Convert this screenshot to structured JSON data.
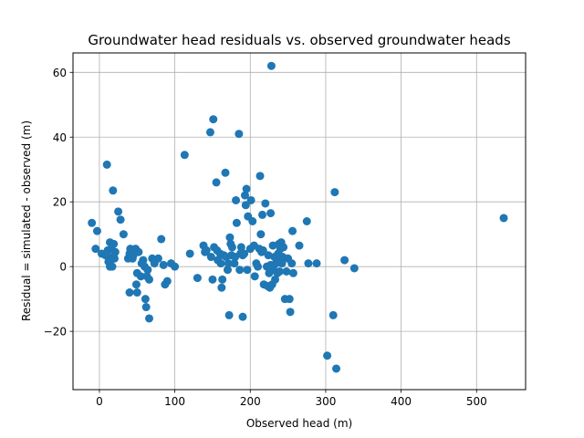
{
  "chart_data": {
    "type": "scatter",
    "title": "Groundwater head residuals vs. observed groundwater heads",
    "xlabel": "Observed head (m)",
    "ylabel": "Residual = simulated - observed (m)",
    "xlim": [
      -35,
      565
    ],
    "ylim": [
      -38,
      66
    ],
    "xticks": [
      0,
      100,
      200,
      300,
      400,
      500
    ],
    "yticks": [
      -20,
      0,
      20,
      40,
      60
    ],
    "grid": true,
    "colors": {
      "marker": "#1f77b4",
      "grid": "#b0b0b0",
      "axes": "#000000"
    },
    "series": [
      {
        "points": [
          [
            -10,
            13.5
          ],
          [
            -5,
            5.5
          ],
          [
            -3,
            11
          ],
          [
            3,
            4
          ],
          [
            8,
            3.5
          ],
          [
            10,
            31.5
          ],
          [
            11,
            5
          ],
          [
            12,
            1.5
          ],
          [
            13,
            3
          ],
          [
            14,
            0
          ],
          [
            14,
            7.5
          ],
          [
            15,
            2
          ],
          [
            16,
            5.5
          ],
          [
            17,
            0
          ],
          [
            18,
            23.5
          ],
          [
            19,
            7
          ],
          [
            20,
            2.5
          ],
          [
            21,
            4.5
          ],
          [
            25,
            17
          ],
          [
            28,
            14.5
          ],
          [
            32,
            10
          ],
          [
            38,
            2.5
          ],
          [
            40,
            4
          ],
          [
            40,
            -8
          ],
          [
            41,
            5.5
          ],
          [
            42,
            3
          ],
          [
            44,
            2.5
          ],
          [
            45,
            3.5
          ],
          [
            48,
            5.5
          ],
          [
            49,
            -5.5
          ],
          [
            50,
            -8
          ],
          [
            50,
            -2
          ],
          [
            52,
            4.5
          ],
          [
            55,
            -3
          ],
          [
            56,
            1
          ],
          [
            58,
            2
          ],
          [
            60,
            0
          ],
          [
            61,
            -10
          ],
          [
            62,
            -12.5
          ],
          [
            63,
            -3
          ],
          [
            64,
            -1
          ],
          [
            66,
            -16
          ],
          [
            66,
            -4
          ],
          [
            70,
            2.5
          ],
          [
            73,
            1
          ],
          [
            78,
            2.5
          ],
          [
            82,
            8.5
          ],
          [
            85,
            0.5
          ],
          [
            87,
            -5.5
          ],
          [
            90,
            -4.5
          ],
          [
            95,
            1
          ],
          [
            100,
            0
          ],
          [
            113,
            34.5
          ],
          [
            120,
            4
          ],
          [
            130,
            -3.5
          ],
          [
            138,
            6.5
          ],
          [
            140,
            4.5
          ],
          [
            142,
            5
          ],
          [
            147,
            41.5
          ],
          [
            148,
            3
          ],
          [
            150,
            -4
          ],
          [
            151,
            45.5
          ],
          [
            152,
            6
          ],
          [
            155,
            26
          ],
          [
            156,
            5
          ],
          [
            157,
            2
          ],
          [
            160,
            4
          ],
          [
            161,
            1
          ],
          [
            162,
            -6.5
          ],
          [
            163,
            -4
          ],
          [
            165,
            3.5
          ],
          [
            167,
            29
          ],
          [
            168,
            3
          ],
          [
            170,
            -1
          ],
          [
            171,
            1
          ],
          [
            172,
            -15
          ],
          [
            173,
            9
          ],
          [
            174,
            7
          ],
          [
            175,
            3.5
          ],
          [
            176,
            6
          ],
          [
            179,
            1
          ],
          [
            180,
            3
          ],
          [
            181,
            20.5
          ],
          [
            182,
            13.5
          ],
          [
            185,
            41
          ],
          [
            186,
            -1
          ],
          [
            187,
            4
          ],
          [
            188,
            6
          ],
          [
            190,
            3.5
          ],
          [
            190,
            -15.5
          ],
          [
            192,
            4
          ],
          [
            193,
            22
          ],
          [
            194,
            19
          ],
          [
            195,
            24
          ],
          [
            196,
            -1
          ],
          [
            197,
            15.5
          ],
          [
            200,
            5.5
          ],
          [
            201,
            20.5
          ],
          [
            203,
            14
          ],
          [
            205,
            6.5
          ],
          [
            206,
            -3
          ],
          [
            208,
            1
          ],
          [
            210,
            0
          ],
          [
            212,
            5.5
          ],
          [
            213,
            28
          ],
          [
            214,
            10
          ],
          [
            215,
            4.5
          ],
          [
            216,
            16
          ],
          [
            217,
            5
          ],
          [
            218,
            -5.5
          ],
          [
            220,
            19.5
          ],
          [
            222,
            0
          ],
          [
            223,
            -6
          ],
          [
            224,
            3.5
          ],
          [
            225,
            -2
          ],
          [
            226,
            -6.5
          ],
          [
            227,
            0.5
          ],
          [
            227,
            16.5
          ],
          [
            228,
            62
          ],
          [
            229,
            -5.5
          ],
          [
            230,
            6.5
          ],
          [
            231,
            -1
          ],
          [
            232,
            3
          ],
          [
            233,
            -4
          ],
          [
            234,
            1
          ],
          [
            235,
            2.5
          ],
          [
            236,
            -2
          ],
          [
            237,
            4
          ],
          [
            238,
            7
          ],
          [
            239,
            -1.5
          ],
          [
            240,
            5.5
          ],
          [
            241,
            7.5
          ],
          [
            242,
            1
          ],
          [
            243,
            3
          ],
          [
            244,
            6
          ],
          [
            246,
            -10
          ],
          [
            248,
            -1.5
          ],
          [
            250,
            2.5
          ],
          [
            252,
            -10
          ],
          [
            253,
            -14
          ],
          [
            255,
            1
          ],
          [
            256,
            11
          ],
          [
            257,
            -2
          ],
          [
            265,
            6.5
          ],
          [
            275,
            14
          ],
          [
            277,
            1
          ],
          [
            288,
            1
          ],
          [
            302,
            -27.5
          ],
          [
            310,
            -15
          ],
          [
            312,
            23
          ],
          [
            314,
            -31.5
          ],
          [
            325,
            2
          ],
          [
            338,
            -0.5
          ],
          [
            536,
            15
          ]
        ]
      }
    ]
  }
}
